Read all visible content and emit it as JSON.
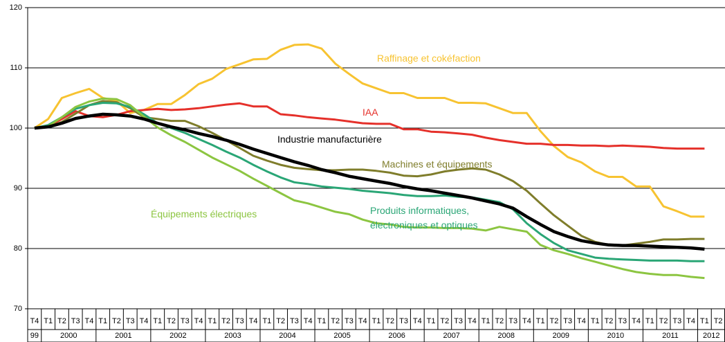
{
  "chart_data": {
    "type": "line",
    "categories": [
      "T4",
      "T1",
      "T2",
      "T3",
      "T4",
      "T1",
      "T2",
      "T3",
      "T4",
      "T1",
      "T2",
      "T3",
      "T4",
      "T1",
      "T2",
      "T3",
      "T4",
      "T1",
      "T2",
      "T3",
      "T4",
      "T1",
      "T2",
      "T3",
      "T4",
      "T1",
      "T2",
      "T3",
      "T4",
      "T1",
      "T2",
      "T3",
      "T4",
      "T1",
      "T2",
      "T3",
      "T4",
      "T1",
      "T2",
      "T3",
      "T4",
      "T1",
      "T2",
      "T3",
      "T4",
      "T1",
      "T2",
      "T3",
      "T4",
      "T1",
      "T2"
    ],
    "years": [
      "99",
      "2000",
      "2001",
      "2002",
      "2003",
      "2004",
      "2005",
      "2006",
      "2007",
      "2008",
      "2009",
      "2010",
      "2011",
      "2012"
    ],
    "ylim": [
      70,
      120
    ],
    "yticks": [
      70,
      80,
      90,
      100,
      110,
      120
    ],
    "grid": true,
    "series": [
      {
        "name": "Raffinage et cokéfaction",
        "color": "#f7c331",
        "values": [
          100,
          101.5,
          105,
          105.8,
          106.5,
          105,
          104.5,
          102.5,
          103,
          104,
          104,
          105.5,
          107.3,
          108.2,
          109.8,
          110.6,
          111.4,
          111.5,
          113,
          113.8,
          113.9,
          113.2,
          110.7,
          109,
          107.4,
          106.6,
          105.8,
          105.8,
          105,
          105,
          105,
          104.2,
          104.2,
          104.1,
          103.3,
          102.5,
          102.5,
          99.5,
          97,
          95.2,
          94.3,
          92.8,
          91.9,
          91.9,
          90.3,
          90.3,
          87,
          86.2,
          85.3,
          85.3,
          null
        ]
      },
      {
        "name": "IAA",
        "color": "#e5302a",
        "values": [
          100,
          100.3,
          101.5,
          102.8,
          102,
          101.8,
          102.2,
          102.8,
          103,
          103.2,
          103,
          103.1,
          103.3,
          103.6,
          103.9,
          104.1,
          103.6,
          103.6,
          102.3,
          102.1,
          101.8,
          101.6,
          101.4,
          101.1,
          100.8,
          100.7,
          100.7,
          99.8,
          99.8,
          99.4,
          99.3,
          99.1,
          98.9,
          98.4,
          98,
          97.7,
          97.4,
          97.4,
          97.2,
          97.2,
          97.1,
          97.1,
          97,
          97.1,
          97,
          96.9,
          96.7,
          96.6,
          96.6,
          96.6,
          null
        ]
      },
      {
        "name": "Machines et équipements",
        "color": "#7f7d2b",
        "values": [
          100,
          100.2,
          101,
          102.4,
          103.8,
          104.5,
          104.3,
          103.3,
          101.8,
          101.5,
          101.2,
          101.2,
          100.3,
          99.2,
          98,
          96.7,
          95.4,
          94.6,
          93.9,
          93.4,
          93.2,
          93,
          93,
          93.1,
          93.1,
          92.9,
          92.6,
          92.1,
          92,
          92.3,
          92.8,
          93.1,
          93.3,
          93.1,
          92.3,
          91.2,
          89.6,
          87.5,
          85.5,
          83.8,
          82.1,
          81.1,
          80.6,
          80.5,
          80.8,
          81.1,
          81.5,
          81.5,
          81.6,
          81.6,
          null
        ]
      },
      {
        "name": "Produits informatiques, électroniques et optiques",
        "color": "#2aa676",
        "values": [
          100,
          100.5,
          101.8,
          103.2,
          103.8,
          104.2,
          104.1,
          103.5,
          102.3,
          100.8,
          100,
          99.2,
          98.2,
          97.2,
          96.1,
          95.1,
          93.9,
          92.8,
          91.8,
          91,
          90.7,
          90.3,
          90.1,
          89.9,
          89.6,
          89.4,
          89.2,
          88.9,
          88.7,
          88.7,
          88.8,
          88.6,
          88.5,
          88.1,
          87.7,
          86.5,
          84.2,
          82.4,
          80.9,
          79.7,
          79.1,
          78.5,
          78.3,
          78.2,
          78.1,
          78,
          78,
          78,
          77.9,
          77.9,
          null
        ]
      },
      {
        "name": "Équipements électriques",
        "color": "#8cc541",
        "values": [
          100,
          100.3,
          101.8,
          103.5,
          104.4,
          104.9,
          104.8,
          103.8,
          101.9,
          100.1,
          98.8,
          97.7,
          96.4,
          95.1,
          94,
          92.9,
          91.6,
          90.4,
          89.2,
          88,
          87.5,
          86.8,
          86.1,
          85.7,
          84.8,
          84.2,
          84,
          83.6,
          83.5,
          83.5,
          83.4,
          83.4,
          83.3,
          83,
          83.6,
          83.2,
          82.8,
          80.6,
          79.7,
          79.1,
          78.4,
          77.8,
          77.2,
          76.6,
          76.1,
          75.8,
          75.6,
          75.6,
          75.3,
          75.1,
          null
        ]
      },
      {
        "name": "Industrie manufacturière",
        "color": "#000000",
        "values": [
          100,
          100.2,
          100.8,
          101.6,
          102,
          102.3,
          102.2,
          102,
          101.5,
          100.8,
          100.2,
          99.7,
          99.1,
          98.6,
          98,
          97.3,
          96.5,
          95.8,
          95.1,
          94.4,
          93.8,
          93.1,
          92.6,
          92,
          91.6,
          91.2,
          90.8,
          90.3,
          89.9,
          89.6,
          89.2,
          88.8,
          88.4,
          87.9,
          87.4,
          86.7,
          85.3,
          84,
          82.8,
          82,
          81.3,
          80.9,
          80.6,
          80.5,
          80.5,
          80.4,
          80.3,
          80.2,
          80.1,
          79.9,
          null
        ]
      }
    ]
  }
}
